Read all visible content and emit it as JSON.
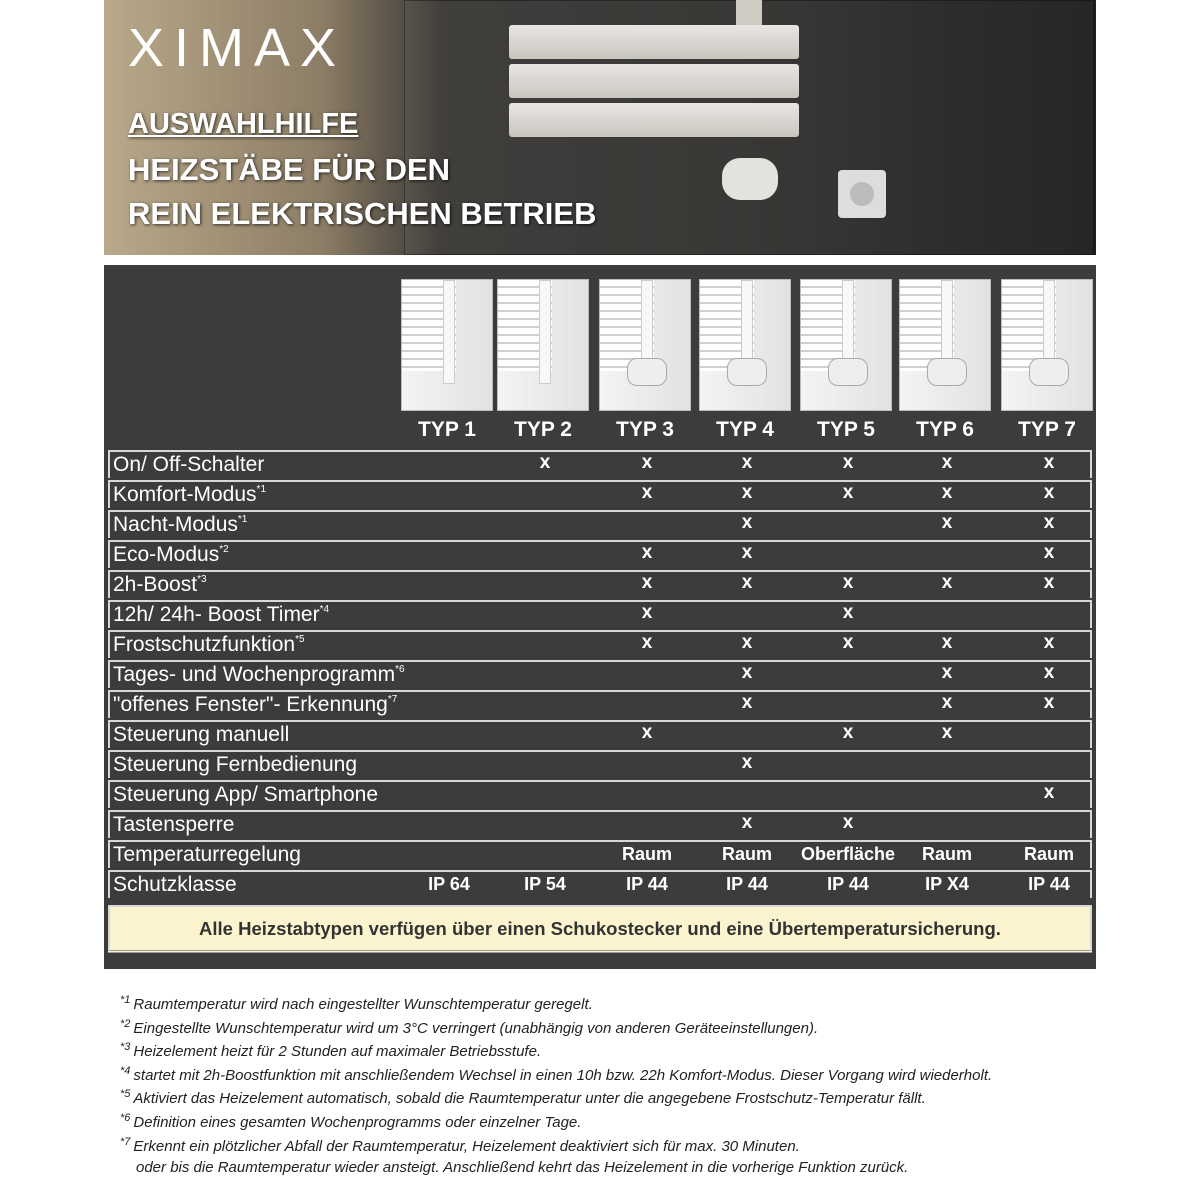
{
  "header": {
    "brand": "XIMAX",
    "line1": "AUSWAHLHILFE",
    "line2": "HEIZSTÄBE FÜR DEN",
    "line3": "REIN ELEKTRISCHEN BETRIEB"
  },
  "types": [
    "TYP 1",
    "TYP 2",
    "TYP 3",
    "TYP 4",
    "TYP 5",
    "TYP 6",
    "TYP 7"
  ],
  "rows": [
    {
      "label": "On/ Off-Schalter",
      "sup": "",
      "cells": [
        "",
        "x",
        "x",
        "x",
        "x",
        "x",
        "x"
      ]
    },
    {
      "label": "Komfort-Modus",
      "sup": "*1",
      "cells": [
        "",
        "",
        "x",
        "x",
        "x",
        "x",
        "x"
      ]
    },
    {
      "label": "Nacht-Modus",
      "sup": "*1",
      "cells": [
        "",
        "",
        "",
        "x",
        "",
        "x",
        "x"
      ]
    },
    {
      "label": "Eco-Modus",
      "sup": "*2",
      "cells": [
        "",
        "",
        "x",
        "x",
        "",
        "",
        "x"
      ]
    },
    {
      "label": "2h-Boost",
      "sup": "*3",
      "cells": [
        "",
        "",
        "x",
        "x",
        "x",
        "x",
        "x"
      ]
    },
    {
      "label": "12h/ 24h- Boost Timer",
      "sup": "*4",
      "cells": [
        "",
        "",
        "x",
        "",
        "x",
        "",
        ""
      ]
    },
    {
      "label": "Frostschutzfunktion",
      "sup": "*5",
      "cells": [
        "",
        "",
        "x",
        "x",
        "x",
        "x",
        "x"
      ]
    },
    {
      "label": "Tages- und Wochenprogramm",
      "sup": "*6",
      "cells": [
        "",
        "",
        "",
        "x",
        "",
        "x",
        "x"
      ]
    },
    {
      "label": "\"offenes Fenster\"- Erkennung",
      "sup": "*7",
      "cells": [
        "",
        "",
        "",
        "x",
        "",
        "x",
        "x"
      ]
    },
    {
      "label": "Steuerung manuell",
      "sup": "",
      "cells": [
        "",
        "",
        "x",
        "",
        "x",
        "x",
        ""
      ]
    },
    {
      "label": "Steuerung Fernbedienung",
      "sup": "",
      "cells": [
        "",
        "",
        "",
        "x",
        "",
        "",
        ""
      ]
    },
    {
      "label": "Steuerung App/ Smartphone",
      "sup": "",
      "cells": [
        "",
        "",
        "",
        "",
        "",
        "",
        "x"
      ]
    },
    {
      "label": "Tastensperre",
      "sup": "",
      "cells": [
        "",
        "",
        "",
        "x",
        "x",
        "",
        ""
      ]
    },
    {
      "label": "Temperaturregelung",
      "sup": "",
      "cells": [
        "",
        "",
        "Raum",
        "Raum",
        "Oberfläche",
        "Raum",
        "Raum"
      ]
    },
    {
      "label": "Schutzklasse",
      "sup": "",
      "cells": [
        "IP 64",
        "IP 54",
        "IP 44",
        "IP 44",
        "IP 44",
        "IP X4",
        "IP 44"
      ]
    }
  ],
  "note": "Alle Heizstabtypen verfügen über einen Schukostecker und eine Übertemperatursicherung.",
  "footnotes": [
    {
      "mark": "*1",
      "text": "Raumtemperatur wird nach eingestellter Wunschtemperatur geregelt."
    },
    {
      "mark": "*2",
      "text": "Eingestellte Wunschtemperatur wird um 3°C verringert (unabhängig von anderen Geräteeinstellungen)."
    },
    {
      "mark": "*3",
      "text": "Heizelement heizt für 2 Stunden auf maximaler Betriebsstufe."
    },
    {
      "mark": "*4",
      "text": "startet mit 2h-Boostfunktion mit anschließendem Wechsel in einen 10h bzw. 22h Komfort-Modus. Dieser Vorgang wird wiederholt."
    },
    {
      "mark": "*5",
      "text": "Aktiviert das Heizelement automatisch, sobald die Raumtemperatur unter die angegebene Frostschutz-Temperatur fällt."
    },
    {
      "mark": "*6",
      "text": "Definition eines gesamten Wochenprogramms oder einzelner Tage."
    },
    {
      "mark": "*7",
      "text": "Erkennt ein plötzlicher Abfall der Raumtemperatur, Heizelement deaktiviert sich für max. 30 Minuten."
    },
    {
      "mark": "",
      "text": "oder bis die Raumtemperatur wieder ansteigt. Anschließend kehrt das Heizelement in die vorherige Funktion zurück."
    }
  ],
  "colors": {
    "panel": "#3c3c3c",
    "note_bg": "#fbf4cf",
    "brand_accent": "#1f8f93"
  }
}
